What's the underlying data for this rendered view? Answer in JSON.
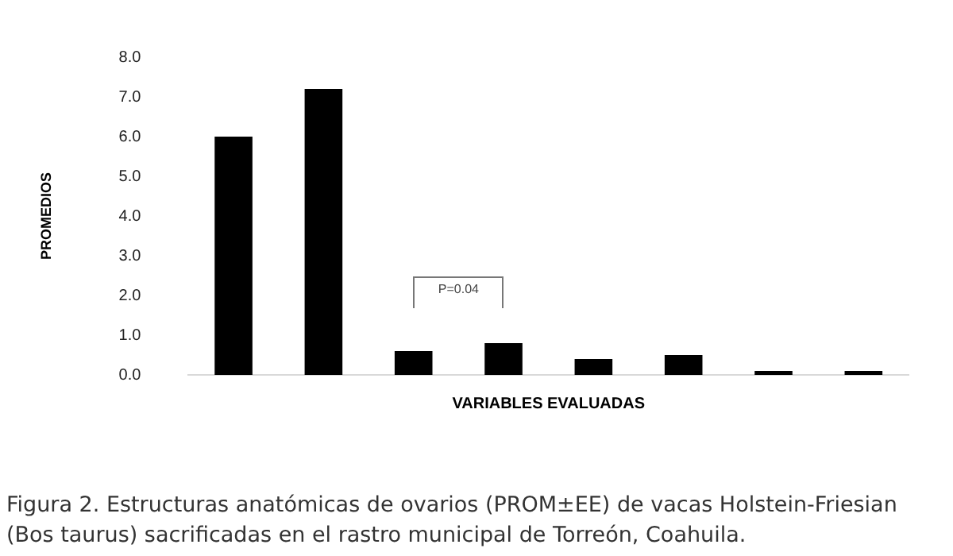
{
  "chart_data": {
    "type": "bar",
    "categories": [
      null,
      null,
      null,
      null,
      null,
      null,
      null,
      null
    ],
    "values": [
      6.0,
      7.2,
      0.6,
      0.8,
      0.4,
      0.5,
      0.1,
      0.1
    ],
    "color": "#000000",
    "ylim": [
      0,
      8
    ],
    "yticks": [
      {
        "value": 0,
        "label": "0.0"
      },
      {
        "value": 1,
        "label": "1.0"
      },
      {
        "value": 2,
        "label": "2.0"
      },
      {
        "value": 3,
        "label": "3.0"
      },
      {
        "value": 4,
        "label": "4.0"
      },
      {
        "value": 5,
        "label": "5.0"
      },
      {
        "value": 6,
        "label": "6.0"
      },
      {
        "value": 7,
        "label": "7.0"
      },
      {
        "value": 8,
        "label": "8.0"
      }
    ],
    "xlabel": "VARIABLES EVALUADAS",
    "ylabel": "PROMEDIOS",
    "grid": false,
    "legend": false,
    "tick_labels": "y",
    "annotations": [
      "P=0.04",
      "Figura 2. Estructuras anatómicas de ovarios (PROM±EE) de vacas Holstein-Friesian (Bos taurus) sacrificadas en el rastro municipal de Torreón, Coahuila."
    ]
  }
}
